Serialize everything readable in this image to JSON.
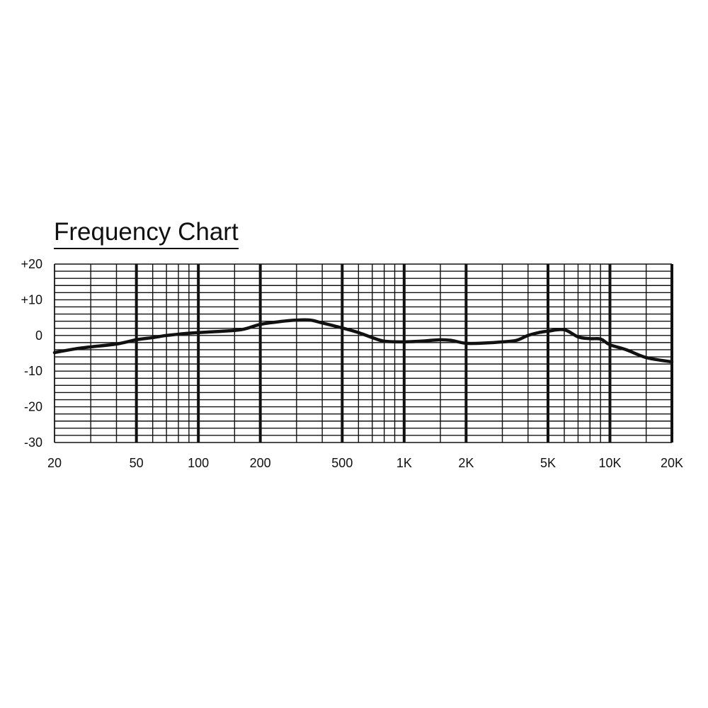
{
  "chart_data": {
    "type": "line",
    "title": "Frequency Chart",
    "xscale": "log",
    "xlim": [
      20,
      20000
    ],
    "ylim": [
      -30,
      20
    ],
    "grid": true,
    "x_tick_labels": [
      {
        "value": 20,
        "label": "20"
      },
      {
        "value": 50,
        "label": "50"
      },
      {
        "value": 100,
        "label": "100"
      },
      {
        "value": 200,
        "label": "200"
      },
      {
        "value": 500,
        "label": "500"
      },
      {
        "value": 1000,
        "label": "1K"
      },
      {
        "value": 2000,
        "label": "2K"
      },
      {
        "value": 5000,
        "label": "5K"
      },
      {
        "value": 10000,
        "label": "10K"
      },
      {
        "value": 20000,
        "label": "20K"
      }
    ],
    "y_tick_labels": [
      {
        "value": 20,
        "label": "+20"
      },
      {
        "value": 10,
        "label": "+10"
      },
      {
        "value": 0,
        "label": "0"
      },
      {
        "value": -10,
        "label": "-10"
      },
      {
        "value": -20,
        "label": "-20"
      },
      {
        "value": -30,
        "label": "-30"
      }
    ],
    "minor_x_grid": [
      20,
      30,
      40,
      50,
      60,
      70,
      80,
      90,
      100,
      150,
      200,
      300,
      400,
      500,
      600,
      700,
      800,
      900,
      1000,
      1500,
      2000,
      3000,
      4000,
      5000,
      6000,
      7000,
      8000,
      9000,
      10000,
      15000,
      20000
    ],
    "major_x_grid": [
      50,
      100,
      200,
      500,
      1000,
      2000,
      5000,
      10000,
      20000
    ],
    "y_grid_step": 2,
    "series": [
      {
        "color": "#111111",
        "x": [
          20,
          25,
          30,
          40,
          50,
          60,
          70,
          85,
          100,
          150,
          170,
          200,
          250,
          300,
          350,
          400,
          500,
          600,
          700,
          800,
          1000,
          1200,
          1500,
          1700,
          2000,
          2500,
          3000,
          3500,
          4000,
          4500,
          5000,
          6000,
          7000,
          8000,
          9000,
          10000,
          12000,
          15000,
          20000
        ],
        "y": [
          -4.8,
          -3.8,
          -3.2,
          -2.4,
          -1.2,
          -0.6,
          0,
          0.5,
          0.8,
          1.4,
          1.9,
          3.1,
          3.9,
          4.3,
          4.3,
          3.5,
          2.1,
          0.8,
          -0.6,
          -1.6,
          -1.8,
          -1.6,
          -1.2,
          -1.4,
          -2.2,
          -2.1,
          -1.8,
          -1.4,
          0,
          0.8,
          1.2,
          1.6,
          -0.4,
          -0.9,
          -1.0,
          -2.6,
          -4.0,
          -6.2,
          -7.4
        ]
      }
    ]
  }
}
